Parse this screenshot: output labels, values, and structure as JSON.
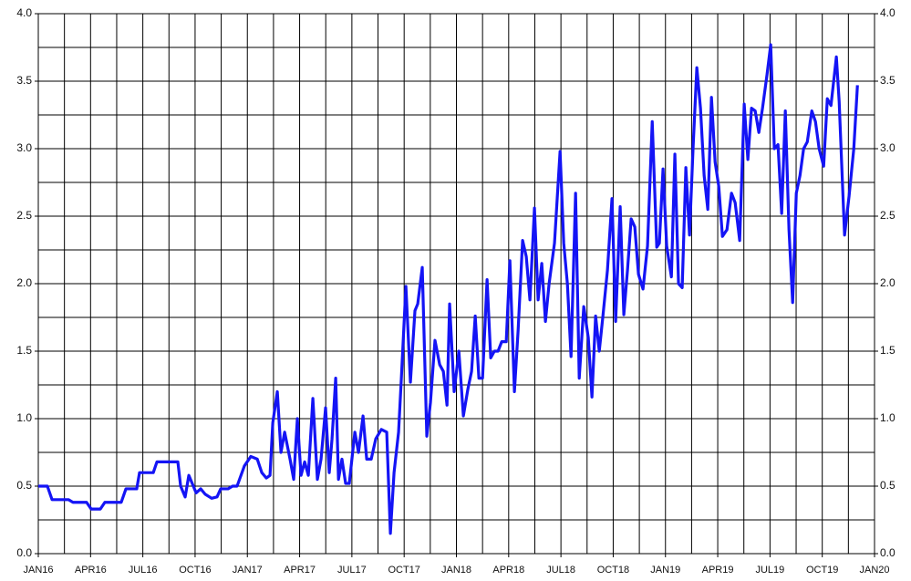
{
  "chart_data": {
    "type": "line",
    "xlim": [
      0,
      48
    ],
    "xticks": [
      {
        "value": 0,
        "label": "JAN16"
      },
      {
        "value": 3,
        "label": "APR16"
      },
      {
        "value": 6,
        "label": "JUL16"
      },
      {
        "value": 9,
        "label": "OCT16"
      },
      {
        "value": 12,
        "label": "JAN17"
      },
      {
        "value": 15,
        "label": "APR17"
      },
      {
        "value": 18,
        "label": "JUL17"
      },
      {
        "value": 21,
        "label": "OCT17"
      },
      {
        "value": 24,
        "label": "JAN18"
      },
      {
        "value": 27,
        "label": "APR18"
      },
      {
        "value": 30,
        "label": "JUL18"
      },
      {
        "value": 33,
        "label": "OCT18"
      },
      {
        "value": 36,
        "label": "JAN19"
      },
      {
        "value": 39,
        "label": "APR19"
      },
      {
        "value": 42,
        "label": "JUL19"
      },
      {
        "value": 45,
        "label": "OCT19"
      },
      {
        "value": 48,
        "label": "JAN20"
      }
    ],
    "ylim": [
      0,
      4
    ],
    "yticks": [
      {
        "value": 0,
        "label": "0.0"
      },
      {
        "value": 0.5,
        "label": "0.5"
      },
      {
        "value": 1,
        "label": "1.0"
      },
      {
        "value": 1.5,
        "label": "1.5"
      },
      {
        "value": 2,
        "label": "2.0"
      },
      {
        "value": 2.5,
        "label": "2.5"
      },
      {
        "value": 3,
        "label": "3.0"
      },
      {
        "value": 3.5,
        "label": "3.5"
      },
      {
        "value": 4,
        "label": "4.0"
      }
    ],
    "y2lim": [
      0,
      4
    ],
    "y2ticks": [
      {
        "value": 0,
        "label": "0.0"
      },
      {
        "value": 0.5,
        "label": "0.5"
      },
      {
        "value": 1,
        "label": "1.0"
      },
      {
        "value": 1.5,
        "label": "1.5"
      },
      {
        "value": 2,
        "label": "2.0"
      },
      {
        "value": 2.5,
        "label": "2.5"
      },
      {
        "value": 3,
        "label": "3.0"
      },
      {
        "value": 3.5,
        "label": "3.5"
      },
      {
        "value": 4,
        "label": "4.0"
      }
    ],
    "grid": true,
    "color": "#1414f5",
    "x": [
      0,
      0.52,
      0.79,
      1.73,
      1.99,
      2.77,
      3.04,
      3.56,
      3.82,
      4.76,
      5.03,
      5.65,
      5.81,
      6.6,
      6.81,
      8.01,
      8.17,
      8.43,
      8.64,
      9.06,
      9.32,
      9.58,
      9.95,
      10.26,
      10.47,
      10.89,
      11.15,
      11.41,
      11.83,
      12.2,
      12.57,
      12.83,
      13.09,
      13.3,
      13.46,
      13.72,
      13.93,
      14.14,
      14.45,
      14.66,
      14.87,
      15.08,
      15.29,
      15.5,
      15.76,
      16.02,
      16.23,
      16.49,
      16.7,
      16.86,
      17.07,
      17.23,
      17.43,
      17.64,
      17.85,
      18.17,
      18.38,
      18.64,
      18.85,
      19.11,
      19.37,
      19.69,
      20.0,
      20.21,
      20.42,
      20.68,
      20.84,
      21.1,
      21.36,
      21.62,
      21.78,
      22.04,
      22.3,
      22.51,
      22.77,
      23.04,
      23.25,
      23.46,
      23.61,
      23.87,
      24.14,
      24.4,
      24.66,
      24.87,
      25.08,
      25.29,
      25.5,
      25.76,
      25.97,
      26.18,
      26.39,
      26.6,
      26.86,
      27.07,
      27.33,
      27.54,
      27.8,
      28.01,
      28.22,
      28.48,
      28.69,
      28.9,
      29.11,
      29.32,
      29.63,
      29.95,
      30.16,
      30.37,
      30.58,
      30.84,
      31.05,
      31.31,
      31.57,
      31.78,
      31.99,
      32.2,
      32.41,
      32.67,
      32.93,
      33.14,
      33.4,
      33.61,
      33.82,
      34.03,
      34.24,
      34.45,
      34.71,
      34.97,
      35.24,
      35.5,
      35.65,
      35.86,
      36.07,
      36.34,
      36.54,
      36.75,
      36.96,
      37.17,
      37.38,
      37.59,
      37.8,
      38.01,
      38.22,
      38.43,
      38.64,
      38.85,
      39.06,
      39.27,
      39.53,
      39.79,
      40.0,
      40.26,
      40.52,
      40.73,
      40.94,
      41.15,
      41.36,
      41.57,
      41.83,
      42.04,
      42.25,
      42.46,
      42.67,
      42.88,
      43.09,
      43.3,
      43.51,
      43.72,
      43.93,
      44.14,
      44.4,
      44.61,
      44.82,
      45.08,
      45.29,
      45.5,
      45.81,
      45.97,
      46.28,
      46.54,
      46.81,
      47.02
    ],
    "values": [
      0.5,
      0.5,
      0.4,
      0.4,
      0.38,
      0.38,
      0.33,
      0.33,
      0.38,
      0.38,
      0.48,
      0.48,
      0.6,
      0.6,
      0.68,
      0.68,
      0.5,
      0.42,
      0.58,
      0.45,
      0.48,
      0.44,
      0.41,
      0.42,
      0.48,
      0.48,
      0.5,
      0.5,
      0.65,
      0.72,
      0.7,
      0.6,
      0.56,
      0.58,
      0.97,
      1.2,
      0.75,
      0.9,
      0.7,
      0.55,
      1.0,
      0.58,
      0.68,
      0.58,
      1.15,
      0.55,
      0.7,
      1.08,
      0.6,
      0.85,
      1.3,
      0.55,
      0.7,
      0.52,
      0.52,
      0.9,
      0.75,
      1.02,
      0.7,
      0.7,
      0.85,
      0.92,
      0.9,
      0.15,
      0.6,
      0.9,
      1.3,
      1.98,
      1.27,
      1.8,
      1.85,
      2.12,
      0.87,
      1.12,
      1.58,
      1.4,
      1.35,
      1.1,
      1.85,
      1.2,
      1.5,
      1.02,
      1.22,
      1.35,
      1.76,
      1.3,
      1.3,
      2.03,
      1.45,
      1.5,
      1.5,
      1.57,
      1.57,
      2.17,
      1.2,
      1.65,
      2.32,
      2.2,
      1.88,
      2.56,
      1.88,
      2.15,
      1.72,
      2.0,
      2.3,
      2.98,
      2.3,
      2.0,
      1.46,
      2.67,
      1.3,
      1.83,
      1.6,
      1.16,
      1.76,
      1.5,
      1.76,
      2.1,
      2.63,
      1.72,
      2.57,
      1.77,
      2.1,
      2.48,
      2.42,
      2.07,
      1.96,
      2.28,
      3.2,
      2.27,
      2.3,
      2.85,
      2.28,
      2.05,
      2.96,
      2.0,
      1.97,
      2.86,
      2.36,
      3.02,
      3.6,
      3.3,
      2.8,
      2.55,
      3.38,
      2.9,
      2.72,
      2.35,
      2.4,
      2.67,
      2.6,
      2.32,
      3.33,
      2.92,
      3.3,
      3.28,
      3.12,
      3.3,
      3.55,
      3.77,
      3.0,
      3.03,
      2.52,
      3.28,
      2.4,
      1.86,
      2.67,
      2.8,
      3.0,
      3.05,
      3.28,
      3.2,
      3.0,
      2.87,
      3.37,
      3.32,
      3.68,
      3.35,
      2.36,
      2.65,
      3.0,
      3.47
    ]
  }
}
